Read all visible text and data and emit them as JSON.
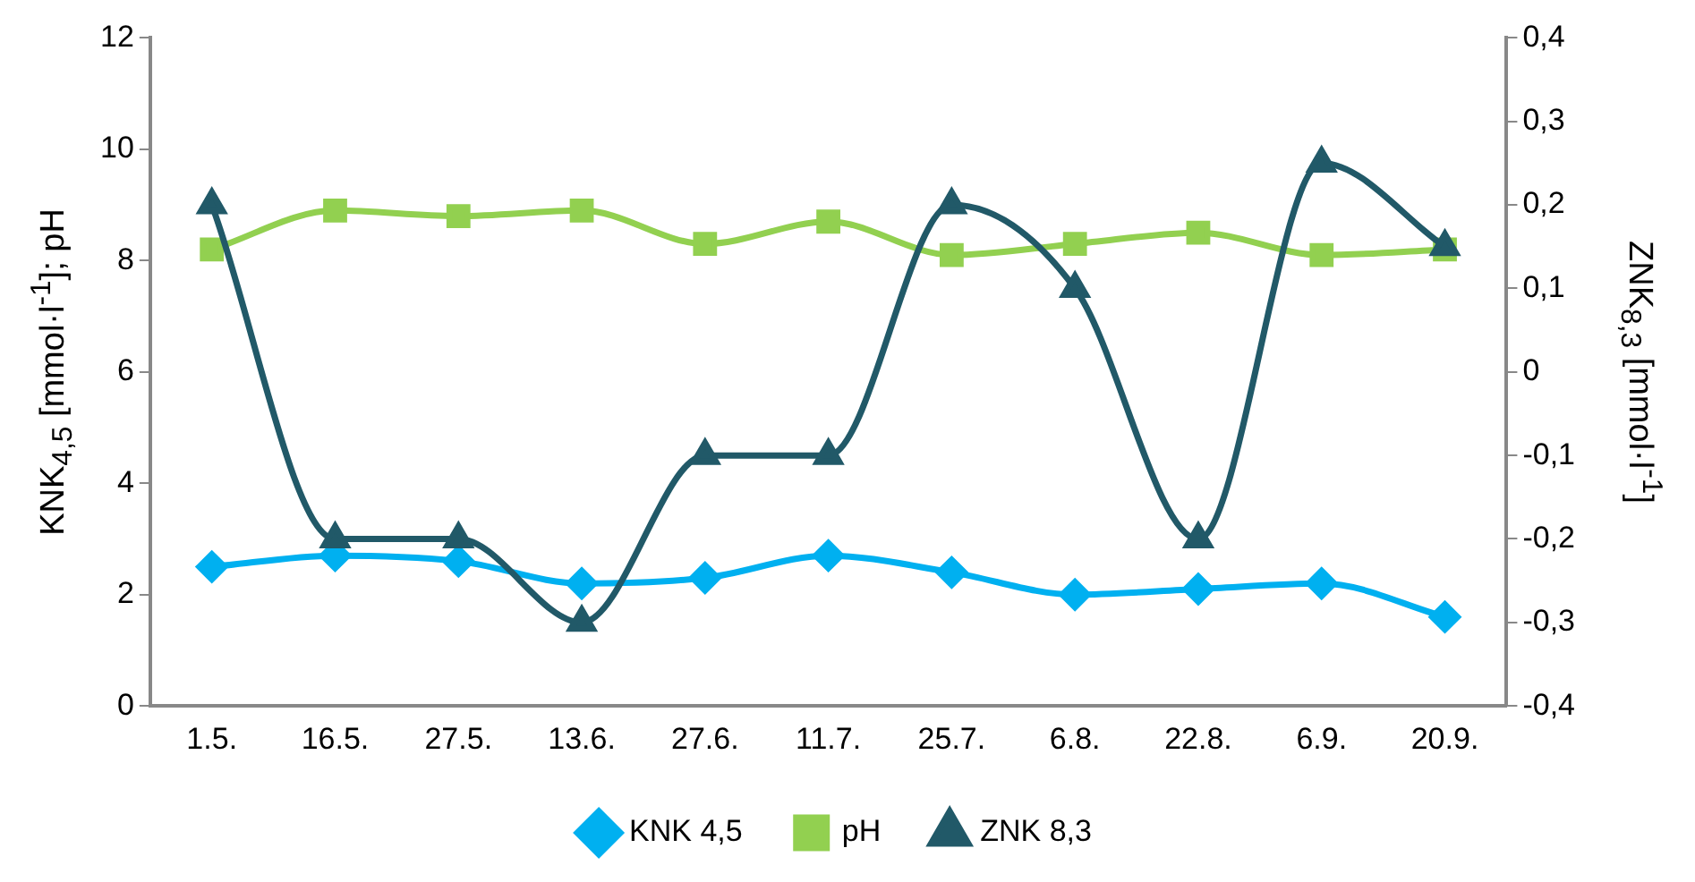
{
  "chart_data": {
    "type": "line",
    "ylabel": "KNK$_{4,5}$ [mmol·l$^{-1}$]; pH",
    "y2label": "ZNK$_{8,3}$ [mmol·l$^{-1}$]",
    "categories": [
      "1.5.",
      "16.5.",
      "27.5.",
      "13.6.",
      "27.6.",
      "11.7.",
      "25.7.",
      "6.8.",
      "22.8.",
      "6.9.",
      "20.9."
    ],
    "series": [
      {
        "name": "KNK 4,5",
        "color": "#00b0f0",
        "marker": "diamond",
        "values": [
          2.5,
          2.7,
          2.6,
          2.2,
          2.3,
          2.7,
          2.4,
          2.0,
          2.1,
          2.2,
          1.6
        ]
      },
      {
        "name": "pH",
        "color": "#92d050",
        "marker": "square",
        "values": [
          8.2,
          8.9,
          8.8,
          8.9,
          8.3,
          8.7,
          8.1,
          8.3,
          8.5,
          8.1,
          8.2
        ]
      },
      {
        "name": "ZNK 8,3",
        "color": "#215968",
        "marker": "triangle",
        "axis": "y2",
        "values": [
          0.2,
          -0.2,
          -0.2,
          -0.3,
          -0.1,
          -0.1,
          0.2,
          0.1,
          -0.2,
          0.25,
          0.15
        ]
      }
    ],
    "ylim": [
      0,
      12
    ],
    "yticks": [
      0,
      2,
      4,
      6,
      8,
      10,
      12
    ],
    "y2lim": [
      -0.4,
      0.4
    ],
    "y2ticks": [
      {
        "value": -0.4,
        "label": "-0,4"
      },
      {
        "value": -0.3,
        "label": "-0,3"
      },
      {
        "value": -0.2,
        "label": "-0,2"
      },
      {
        "value": -0.1,
        "label": "-0,1"
      },
      {
        "value": 0,
        "label": "0"
      },
      {
        "value": 0.1,
        "label": "0,1"
      },
      {
        "value": 0.2,
        "label": "0,2"
      },
      {
        "value": 0.3,
        "label": "0,3"
      },
      {
        "value": 0.4,
        "label": "0,4"
      }
    ],
    "grid": false,
    "legend": "bottom",
    "line_style": "solid"
  }
}
